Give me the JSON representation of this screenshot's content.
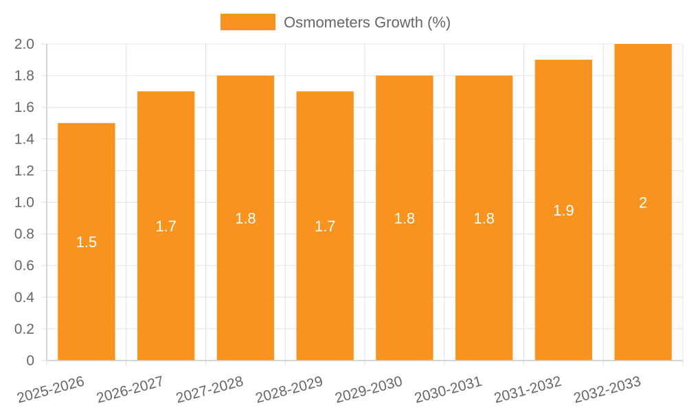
{
  "chart_data": {
    "type": "bar",
    "title": "",
    "xlabel": "",
    "ylabel": "",
    "categories": [
      "2025-2026",
      "2026-2027",
      "2027-2028",
      "2028-2029",
      "2029-2030",
      "2030-2031",
      "2031-2032",
      "2032-2033"
    ],
    "series": [
      {
        "name": "Osmometers Growth (%)",
        "values": [
          1.5,
          1.7,
          1.8,
          1.7,
          1.8,
          1.8,
          1.9,
          2
        ],
        "data_labels": [
          "1.5",
          "1.7",
          "1.8",
          "1.7",
          "1.8",
          "1.8",
          "1.9",
          "2"
        ],
        "color": "#f7931e"
      }
    ],
    "ylim": [
      0,
      2
    ],
    "y_ticks": [
      "0",
      "0.2",
      "0.4",
      "0.6",
      "0.8",
      "1.0",
      "1.2",
      "1.4",
      "1.6",
      "1.8",
      "2.0"
    ],
    "y_tick_values": [
      0,
      0.2,
      0.4,
      0.6,
      0.8,
      1.0,
      1.2,
      1.4,
      1.6,
      1.8,
      2.0
    ],
    "grid": true,
    "legend": "top-center",
    "colors": {
      "bar": "#f7931e",
      "grid": "#e0e0e0",
      "axis": "#c8c8c8",
      "text": "#666666",
      "data_label": "#ffffff"
    }
  }
}
